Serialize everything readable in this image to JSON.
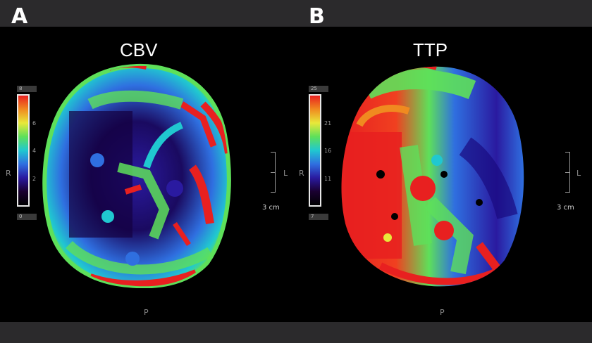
{
  "panels": [
    {
      "letter": "A",
      "title": "CBV",
      "scale": {
        "top": "8",
        "ticks": [
          "6",
          "4",
          "2"
        ],
        "bottom": "0"
      },
      "orientation": {
        "left": "R",
        "right": "L",
        "bottom": "P"
      },
      "distance": "3 cm"
    },
    {
      "letter": "B",
      "title": "TTP",
      "scale": {
        "top": "25",
        "ticks": [
          "21",
          "16",
          "11"
        ],
        "bottom": "7"
      },
      "orientation": {
        "left": "R",
        "right": "L",
        "bottom": "P"
      },
      "distance": "3 cm"
    }
  ],
  "colors": {
    "background": "#2b2a2c",
    "scan_background": "#000000",
    "perfusion_scale": [
      "#1a0030",
      "#2a1aa0",
      "#2f6fe0",
      "#20c8d0",
      "#5ee05a",
      "#e8e83a",
      "#f08a20",
      "#e82020"
    ]
  }
}
